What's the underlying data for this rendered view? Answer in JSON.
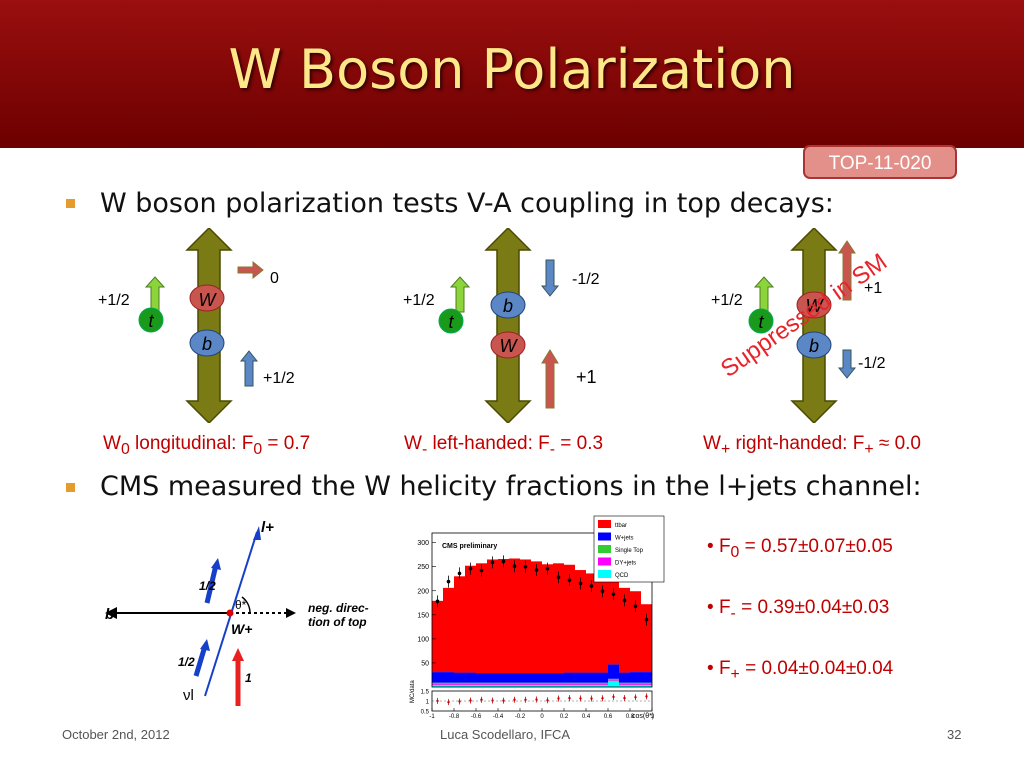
{
  "title": "W Boson Polarization",
  "badge": "TOP-11-020",
  "bullets": [
    "W boson polarization tests V-A coupling in top decays:",
    "CMS measured the W helicity fractions in the l+jets channel:"
  ],
  "diagrams": {
    "longitudinal": {
      "t_spin": "+1/2",
      "w_spin": "0",
      "b_spin": "+1/2",
      "w": "W",
      "b": "b",
      "t": "t"
    },
    "left": {
      "t_spin": "+1/2",
      "b_spin": "-1/2",
      "w_spin": "+1",
      "w": "W",
      "b": "b",
      "t": "t"
    },
    "right": {
      "t_spin": "+1/2",
      "w_spin": "+1",
      "b_spin": "-1/2",
      "w": "W",
      "b": "b",
      "t": "t",
      "suppressed": "Suppressed in SM"
    }
  },
  "captions": {
    "c0": {
      "a": "W",
      "sub": "0",
      "b": " longitudinal: F",
      "sub2": "0",
      "c": " = 0.7"
    },
    "c1": {
      "a": "W",
      "sub": "-",
      "b": " left-handed: F",
      "sub2": "-",
      "c": " = 0.3"
    },
    "c2": {
      "a": "W",
      "sub": "+",
      "b": " right-handed: F",
      "sub2": "+",
      "c": " ≈ 0.0"
    }
  },
  "results": [
    {
      "name": "F",
      "sub": "0",
      "value": " = 0.57±0.07±0.05"
    },
    {
      "name": "F",
      "sub": "-",
      "value": " = 0.39±0.04±0.03"
    },
    {
      "name": "F",
      "sub": "+",
      "value": " = 0.04±0.04±0.04"
    }
  ],
  "decay_diagram": {
    "l_plus": "l+",
    "b": "b",
    "theta": "θ*",
    "direction": [
      "neg. direc-",
      "tion of top"
    ],
    "w_plus": "W+",
    "half1": "1/2",
    "half2": "1/2",
    "nu": "νl",
    "one": "1"
  },
  "plot": {
    "title": "CMS preliminary",
    "xlabel": "cos(θ*)",
    "ratio_label": "MC/data",
    "legend": [
      "ttbar",
      "W+jets",
      "Single Top",
      "DY+jets",
      "QCD"
    ],
    "colors": {
      "ttbar": "#ff0000",
      "wjets": "#0000ff",
      "singletop": "#33cc33",
      "dy": "#ff00ff",
      "qcd": "#00ffff"
    }
  },
  "chart_data": {
    "type": "bar",
    "title": "CMS preliminary",
    "xlabel": "cos(θ*)",
    "ylabel": "",
    "xlim": [
      -1,
      1
    ],
    "ylim": [
      0,
      320
    ],
    "yticks": [
      50,
      100,
      150,
      200,
      250,
      300
    ],
    "xticks": [
      "-1",
      "-0.8",
      "-0.6",
      "-0.4",
      "-0.2",
      "0",
      "0.2",
      "0.4",
      "0.6",
      "0.8",
      "1"
    ],
    "bins": 20,
    "series": [
      {
        "name": "ttbar",
        "values": [
          148,
          175,
          200,
          222,
          228,
          236,
          237,
          238,
          236,
          232,
          226,
          228,
          224,
          213,
          206,
          196,
          186,
          176,
          168,
          141
        ]
      },
      {
        "name": "W+jets",
        "values": [
          22,
          22,
          21,
          21,
          20,
          20,
          20,
          20,
          20,
          20,
          20,
          20,
          21,
          21,
          21,
          21,
          30,
          21,
          22,
          22
        ]
      },
      {
        "name": "Single Top",
        "values": [
          3,
          3,
          3,
          3,
          3,
          3,
          3,
          3,
          3,
          3,
          3,
          3,
          3,
          3,
          3,
          3,
          3,
          3,
          3,
          3
        ]
      },
      {
        "name": "DY+jets",
        "values": [
          2,
          2,
          2,
          2,
          2,
          2,
          2,
          2,
          2,
          2,
          2,
          2,
          2,
          2,
          2,
          2,
          2,
          2,
          2,
          2
        ]
      },
      {
        "name": "QCD",
        "values": [
          4,
          4,
          4,
          4,
          4,
          4,
          4,
          4,
          4,
          4,
          4,
          4,
          4,
          4,
          4,
          4,
          12,
          4,
          4,
          4
        ]
      }
    ],
    "data_points": [
      178,
      219,
      236,
      246,
      242,
      259,
      261,
      251,
      250,
      243,
      246,
      228,
      222,
      215,
      210,
      199,
      193,
      180,
      168,
      140
    ],
    "ratio_ylim": [
      0.5,
      1.5
    ],
    "ratio_yticks": [
      0.5,
      1,
      1.5
    ]
  },
  "footer": {
    "date": "October 2nd, 2012",
    "author": "Luca Scodellaro, IFCA",
    "page": "32"
  }
}
